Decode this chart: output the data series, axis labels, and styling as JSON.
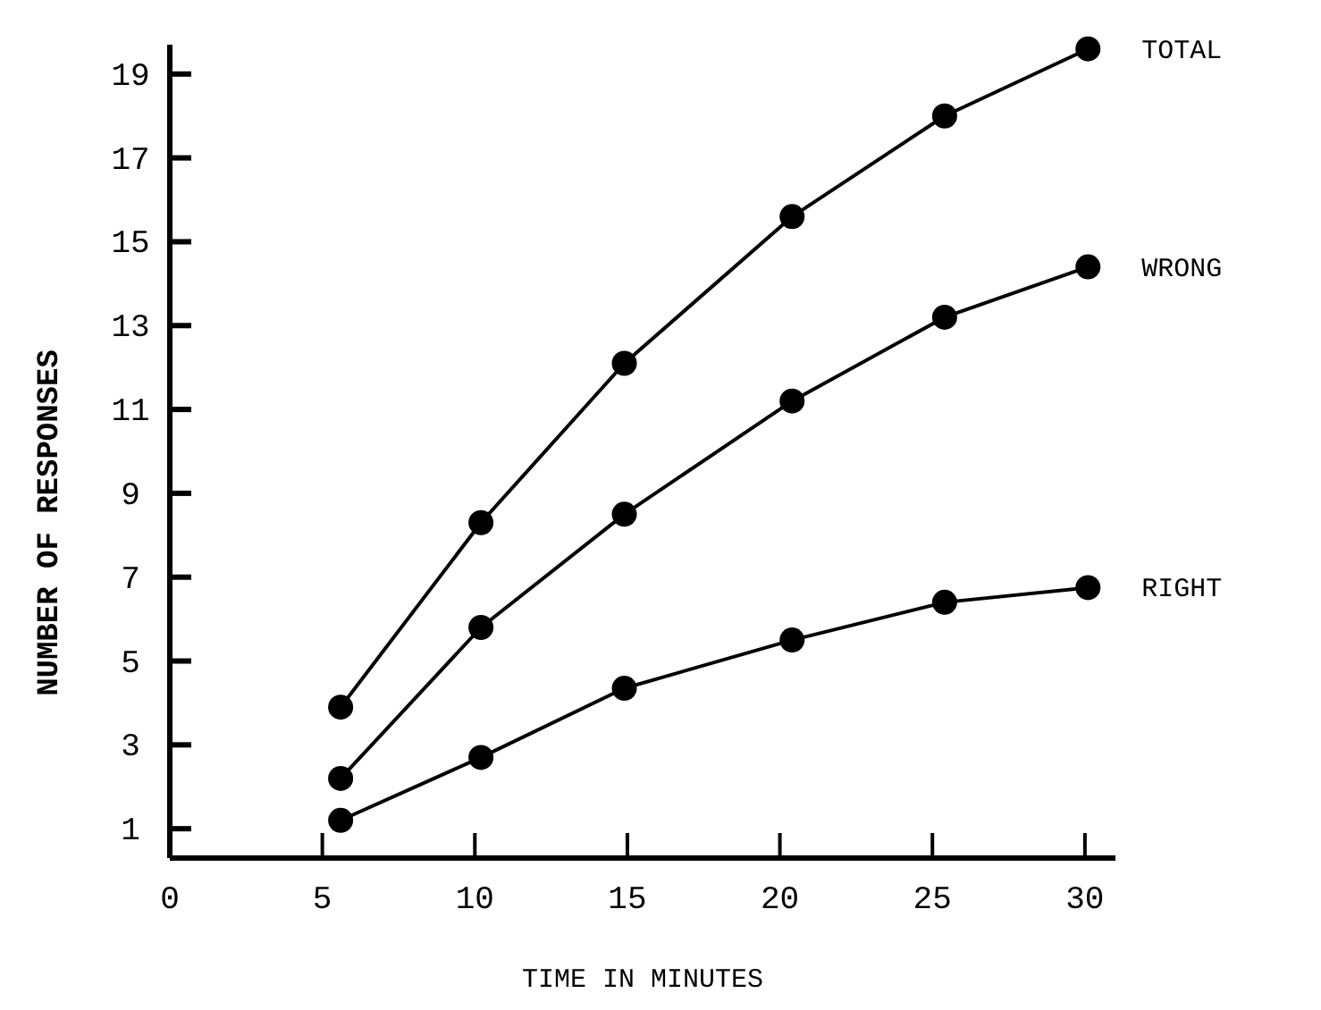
{
  "chart_data": {
    "type": "line",
    "xlabel": "TIME IN MINUTES",
    "ylabel": "NUMBER OF RESPONSES",
    "x": [
      5.6,
      10.2,
      14.9,
      20.4,
      25.4,
      30.1
    ],
    "series": [
      {
        "name": "TOTAL",
        "color": "#000000",
        "values": [
          3.9,
          8.3,
          12.1,
          15.6,
          18.0,
          19.6
        ]
      },
      {
        "name": "WRONG",
        "color": "#000000",
        "values": [
          2.2,
          5.8,
          8.5,
          11.2,
          13.2,
          14.4
        ]
      },
      {
        "name": "RIGHT",
        "color": "#000000",
        "values": [
          1.2,
          2.7,
          4.35,
          5.5,
          6.4,
          6.75
        ]
      }
    ],
    "xlim": [
      0,
      31
    ],
    "xticks": [
      0,
      5,
      10,
      15,
      20,
      25,
      30
    ],
    "ylim": [
      0.3,
      19.7
    ],
    "yticks": [
      1,
      3,
      5,
      7,
      9,
      11,
      13,
      15,
      17,
      19
    ],
    "grid": false,
    "marker": "circle",
    "line_style": "solid"
  }
}
